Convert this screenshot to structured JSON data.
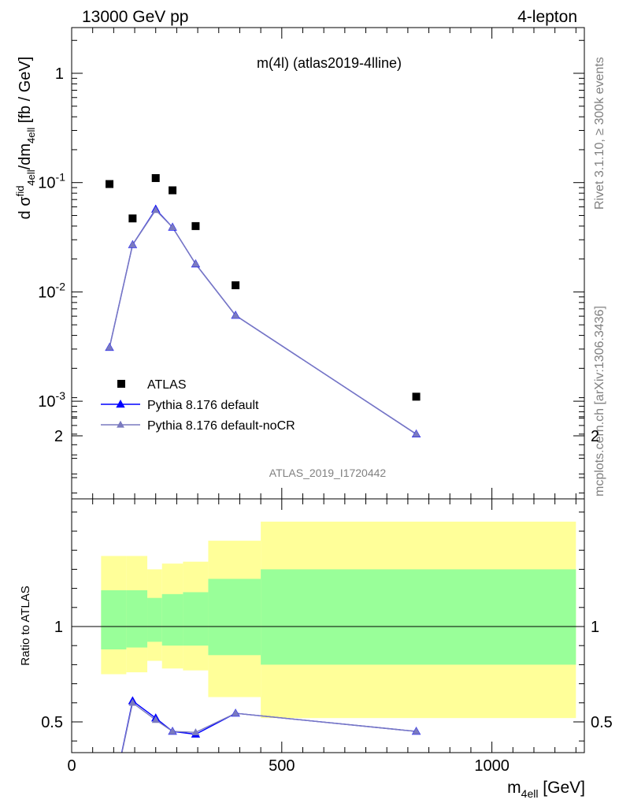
{
  "header": {
    "left": "13000 GeV pp",
    "right": "4-lepton"
  },
  "side_text": {
    "rivet": "Rivet 3.1.10, ≥ 300k events",
    "mcplots": "mcplots.cern.ch [arXiv:1306.3436]"
  },
  "watermark": "ATLAS_2019_I1720442",
  "chart_data": [
    {
      "type": "scatter",
      "panel": "main",
      "title": "m(4l) (atlas2019-4lline)",
      "ylabel": "d σ^{fid}_{4ell}/dm_{4ell} [fb / GeV]",
      "yscale": "log",
      "xlim": [
        0,
        1220
      ],
      "ylim": [
        0.0002,
        2.5
      ],
      "y_ticks": [
        {
          "value": 1,
          "label": "1"
        },
        {
          "value": 0.1,
          "label": "10^{-1}"
        },
        {
          "value": 0.01,
          "label": "10^{-2}"
        },
        {
          "value": 0.001,
          "label": "10^{-3}"
        }
      ],
      "legend_position": "bottom-left",
      "series": [
        {
          "name": "ATLAS",
          "marker": "square",
          "color": "#000000",
          "x": [
            90,
            145,
            200,
            240,
            295,
            390,
            820
          ],
          "y": [
            0.097,
            0.047,
            0.11,
            0.085,
            0.04,
            0.0115,
            0.0011
          ]
        },
        {
          "name": "Pythia 8.176 default",
          "marker": "triangle",
          "color": "#0000ff",
          "x": [
            90,
            145,
            200,
            240,
            295,
            390,
            820
          ],
          "y": [
            0.0031,
            0.027,
            0.057,
            0.039,
            0.018,
            0.0061,
            0.0005
          ]
        },
        {
          "name": "Pythia 8.176 default-noCR",
          "marker": "triangle",
          "color": "#7a7abf",
          "x": [
            90,
            145,
            200,
            240,
            295,
            390,
            820
          ],
          "y": [
            0.0031,
            0.027,
            0.056,
            0.039,
            0.018,
            0.0061,
            0.0005
          ]
        }
      ]
    },
    {
      "type": "line",
      "panel": "ratio",
      "ylabel": "Ratio to ATLAS",
      "xlabel": "m_{4ell} [GeV]",
      "xlim": [
        0,
        1220
      ],
      "ylim": [
        0.35,
        2.3
      ],
      "x_ticks": [
        0,
        500,
        1000
      ],
      "y_ticks": [
        0.5,
        1,
        2
      ],
      "bands": [
        {
          "x0": 70,
          "x1": 130,
          "inner": [
            0.88,
            1.19
          ],
          "outer": [
            0.75,
            1.37
          ]
        },
        {
          "x0": 130,
          "x1": 180,
          "inner": [
            0.89,
            1.19
          ],
          "outer": [
            0.76,
            1.37
          ]
        },
        {
          "x0": 180,
          "x1": 215,
          "inner": [
            0.92,
            1.15
          ],
          "outer": [
            0.82,
            1.3
          ]
        },
        {
          "x0": 215,
          "x1": 265,
          "inner": [
            0.9,
            1.17
          ],
          "outer": [
            0.78,
            1.33
          ]
        },
        {
          "x0": 265,
          "x1": 325,
          "inner": [
            0.9,
            1.18
          ],
          "outer": [
            0.77,
            1.34
          ]
        },
        {
          "x0": 325,
          "x1": 450,
          "inner": [
            0.85,
            1.25
          ],
          "outer": [
            0.63,
            1.45
          ]
        },
        {
          "x0": 450,
          "x1": 1200,
          "inner": [
            0.8,
            1.3
          ],
          "outer": [
            0.52,
            1.55
          ]
        }
      ],
      "series": [
        {
          "name": "Pythia 8.176 default",
          "color": "#0000ff",
          "x": [
            90,
            145,
            200,
            240,
            295,
            390,
            820
          ],
          "y": [
            0.032,
            0.61,
            0.52,
            0.45,
            0.435,
            0.545,
            0.45
          ]
        },
        {
          "name": "Pythia 8.176 default-noCR",
          "color": "#7a7abf",
          "x": [
            90,
            145,
            200,
            240,
            295,
            390,
            820
          ],
          "y": [
            0.032,
            0.6,
            0.51,
            0.45,
            0.445,
            0.545,
            0.45
          ]
        }
      ]
    }
  ]
}
